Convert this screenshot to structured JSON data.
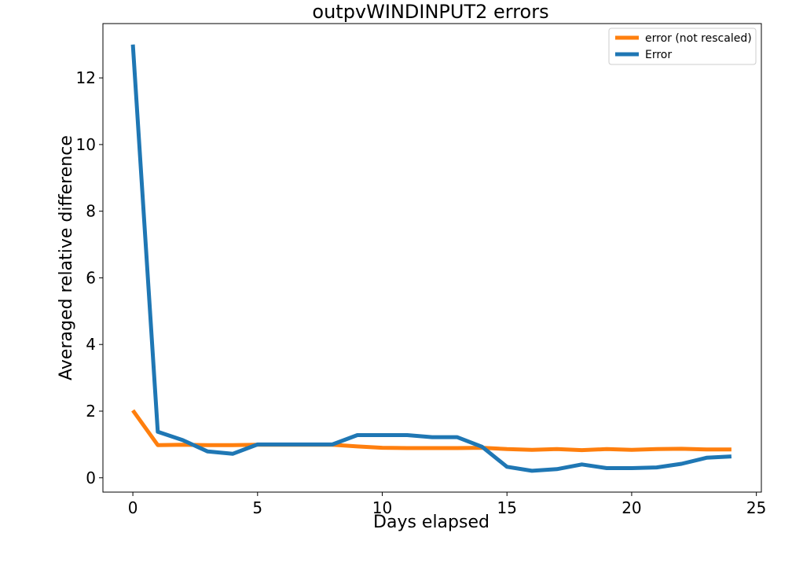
{
  "chart_data": {
    "type": "line",
    "title": "outpvWINDINPUT2 errors",
    "xlabel": "Days elapsed",
    "ylabel": "Averaged relative difference",
    "xlim": [
      -1.2,
      25.2
    ],
    "ylim": [
      -0.43,
      13.63
    ],
    "xticks": [
      0,
      5,
      10,
      15,
      20,
      25
    ],
    "yticks": [
      0,
      2,
      4,
      6,
      8,
      10,
      12
    ],
    "grid": false,
    "legend_position": "top-right",
    "x": [
      0,
      1,
      2,
      3,
      4,
      5,
      6,
      7,
      8,
      9,
      10,
      11,
      12,
      13,
      14,
      15,
      16,
      17,
      18,
      19,
      20,
      21,
      22,
      23,
      24
    ],
    "series": [
      {
        "name": "error (not rescaled)",
        "color": "#ff7f0e",
        "values": [
          2.02,
          0.98,
          0.99,
          0.98,
          0.98,
          0.99,
          0.99,
          0.99,
          0.99,
          0.94,
          0.9,
          0.89,
          0.89,
          0.89,
          0.9,
          0.86,
          0.84,
          0.86,
          0.83,
          0.86,
          0.84,
          0.86,
          0.87,
          0.85,
          0.85
        ]
      },
      {
        "name": "Error",
        "color": "#1f77b4",
        "values": [
          13.0,
          1.38,
          1.13,
          0.79,
          0.72,
          1.0,
          1.0,
          1.0,
          1.0,
          1.28,
          1.28,
          1.28,
          1.22,
          1.22,
          0.93,
          0.33,
          0.21,
          0.26,
          0.4,
          0.29,
          0.29,
          0.31,
          0.42,
          0.6,
          0.64
        ]
      }
    ]
  }
}
